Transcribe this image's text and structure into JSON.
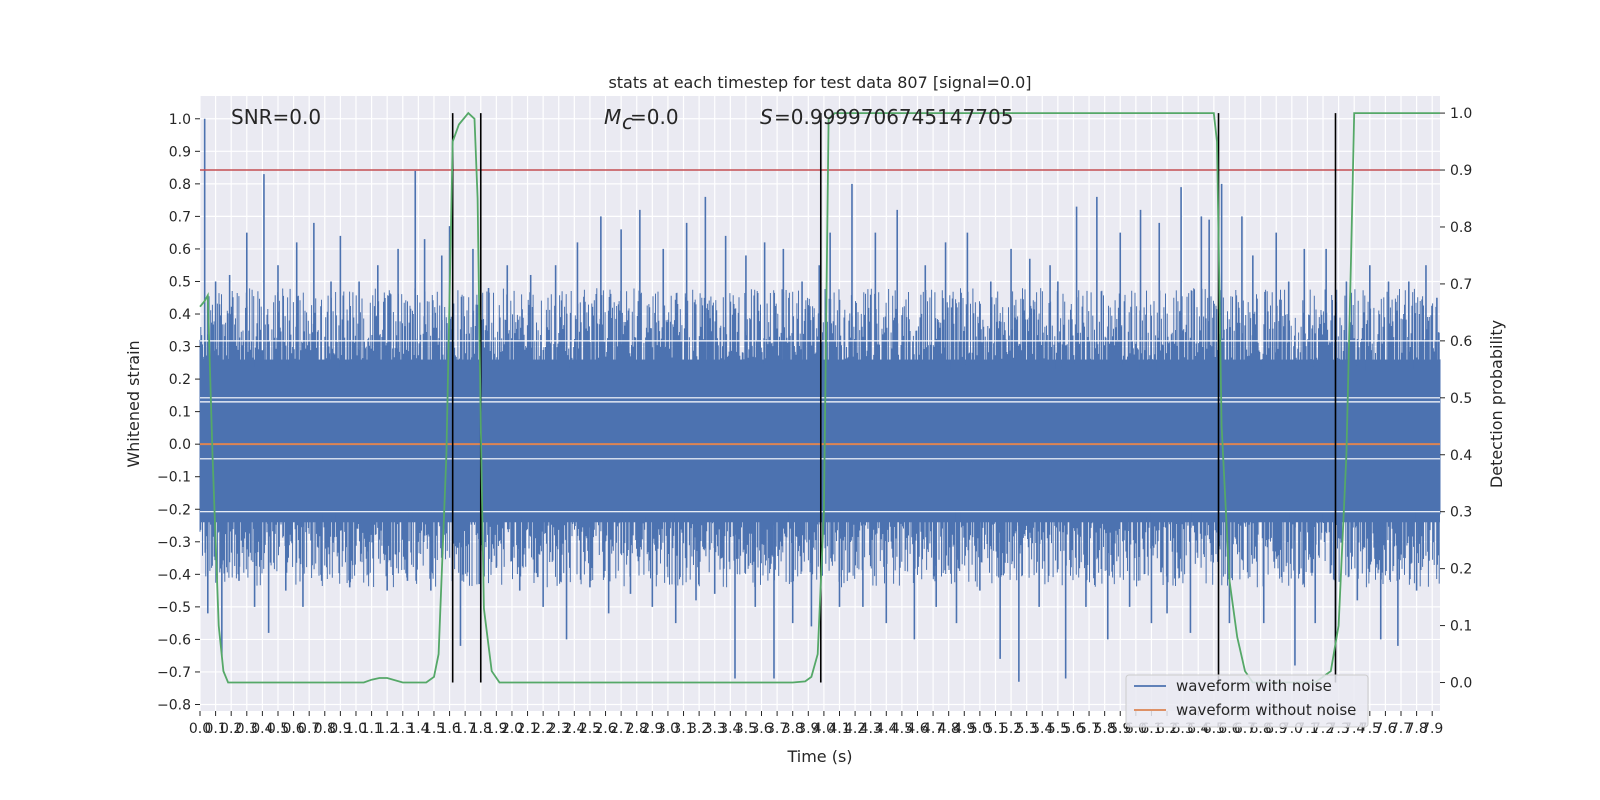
{
  "chart_data": {
    "type": "line",
    "title": "stats at each timestep for test data 807 [signal=0.0]",
    "xlabel": "Time (s)",
    "ylabel": "Whitened strain",
    "y2label": "Detection probability",
    "xlim": [
      0.0,
      7.95
    ],
    "ylim": [
      -0.82,
      1.07
    ],
    "y2lim": [
      -0.05,
      1.03
    ],
    "grid": true,
    "x_ticks": [
      0.0,
      0.1,
      0.2,
      0.3,
      0.4,
      0.5,
      0.6,
      0.7,
      0.8,
      0.9,
      1.0,
      1.1,
      1.2,
      1.3,
      1.4,
      1.5,
      1.6,
      1.7,
      1.8,
      1.9,
      2.0,
      2.1,
      2.2,
      2.3,
      2.4,
      2.5,
      2.6,
      2.7,
      2.8,
      2.9,
      3.0,
      3.1,
      3.2,
      3.3,
      3.4,
      3.5,
      3.6,
      3.7,
      3.8,
      3.9,
      4.0,
      4.1,
      4.2,
      4.3,
      4.4,
      4.5,
      4.6,
      4.7,
      4.8,
      4.9,
      5.0,
      5.1,
      5.2,
      5.3,
      5.4,
      5.5,
      5.6,
      5.7,
      5.8,
      5.9,
      6.0,
      6.1,
      6.2,
      6.3,
      6.4,
      6.5,
      6.6,
      6.7,
      6.8,
      6.9,
      7.0,
      7.1,
      7.2,
      7.3,
      7.4,
      7.5,
      7.6,
      7.7,
      7.8,
      7.9
    ],
    "x_tick_labels": [
      "0.0",
      "0.1",
      "0.2",
      "0.3",
      "0.4",
      "0.5",
      "0.6",
      "0.7",
      "0.8",
      "0.9",
      "1.0",
      "1.1",
      "1.2",
      "1.3",
      "1.4",
      "1.5",
      "1.6",
      "1.7",
      "1.8",
      "1.9",
      "2.0",
      "2.1",
      "2.2",
      "2.3",
      "2.4",
      "2.5",
      "2.6",
      "2.7",
      "2.8",
      "2.9",
      "3.0",
      "3.1",
      "3.2",
      "3.3",
      "3.4",
      "3.5",
      "3.6",
      "3.7",
      "3.8",
      "3.9",
      "4.0",
      "4.1",
      "4.2",
      "4.3",
      "4.4",
      "4.5",
      "4.6",
      "4.7",
      "4.8",
      "4.9",
      "5.0",
      "5.1",
      "5.2",
      "5.3",
      "5.4",
      "5.5",
      "5.6",
      "5.7",
      "5.8",
      "5.9",
      "6.0",
      "6.1",
      "6.2",
      "6.3",
      "6.4",
      "6.5",
      "6.6",
      "6.7",
      "6.8",
      "6.9",
      "7.0",
      "7.1",
      "7.2",
      "7.3",
      "7.4",
      "7.5",
      "7.6",
      "7.7",
      "7.8",
      "7.9"
    ],
    "y_ticks": [
      -0.8,
      -0.7,
      -0.6,
      -0.5,
      -0.4,
      -0.3,
      -0.2,
      -0.1,
      0.0,
      0.1,
      0.2,
      0.3,
      0.4,
      0.5,
      0.6,
      0.7,
      0.8,
      0.9,
      1.0
    ],
    "y_tick_labels": [
      "−0.8",
      "−0.7",
      "−0.6",
      "−0.5",
      "−0.4",
      "−0.3",
      "−0.2",
      "−0.1",
      "0.0",
      "0.1",
      "0.2",
      "0.3",
      "0.4",
      "0.5",
      "0.6",
      "0.7",
      "0.8",
      "0.9",
      "1.0"
    ],
    "y2_ticks": [
      0.0,
      0.1,
      0.2,
      0.3,
      0.4,
      0.5,
      0.6,
      0.7,
      0.8,
      0.9,
      1.0
    ],
    "y2_tick_labels": [
      "0.0",
      "0.1",
      "0.2",
      "0.3",
      "0.4",
      "0.5",
      "0.6",
      "0.7",
      "0.8",
      "0.9",
      "1.0"
    ],
    "series": [
      {
        "name": "waveform with noise",
        "color": "#4c72b0",
        "band_low": -0.24,
        "band_high": 0.26,
        "peaks": [
          {
            "x": 0.03,
            "y": 1.0
          },
          {
            "x": 0.05,
            "y": -0.52
          },
          {
            "x": 0.1,
            "y": 0.5
          },
          {
            "x": 0.14,
            "y": -0.65
          },
          {
            "x": 0.19,
            "y": 0.52
          },
          {
            "x": 0.25,
            "y": -0.42
          },
          {
            "x": 0.3,
            "y": 0.65
          },
          {
            "x": 0.35,
            "y": -0.5
          },
          {
            "x": 0.41,
            "y": 0.83
          },
          {
            "x": 0.44,
            "y": -0.58
          },
          {
            "x": 0.5,
            "y": 0.55
          },
          {
            "x": 0.55,
            "y": -0.45
          },
          {
            "x": 0.62,
            "y": 0.62
          },
          {
            "x": 0.66,
            "y": -0.5
          },
          {
            "x": 0.73,
            "y": 0.68
          },
          {
            "x": 0.78,
            "y": -0.42
          },
          {
            "x": 0.84,
            "y": 0.5
          },
          {
            "x": 0.9,
            "y": 0.64
          },
          {
            "x": 0.96,
            "y": -0.44
          },
          {
            "x": 1.02,
            "y": 0.5
          },
          {
            "x": 1.08,
            "y": -0.4
          },
          {
            "x": 1.14,
            "y": 0.55
          },
          {
            "x": 1.2,
            "y": -0.45
          },
          {
            "x": 1.27,
            "y": 0.6
          },
          {
            "x": 1.33,
            "y": -0.42
          },
          {
            "x": 1.38,
            "y": 0.84
          },
          {
            "x": 1.44,
            "y": 0.63
          },
          {
            "x": 1.48,
            "y": -0.45
          },
          {
            "x": 1.55,
            "y": 0.58
          },
          {
            "x": 1.6,
            "y": 0.67
          },
          {
            "x": 1.67,
            "y": -0.62
          },
          {
            "x": 1.75,
            "y": 0.6
          },
          {
            "x": 1.79,
            "y": -0.43
          },
          {
            "x": 1.85,
            "y": 0.48
          },
          {
            "x": 1.9,
            "y": -0.38
          },
          {
            "x": 1.97,
            "y": 0.55
          },
          {
            "x": 2.05,
            "y": -0.45
          },
          {
            "x": 2.12,
            "y": 0.52
          },
          {
            "x": 2.2,
            "y": -0.5
          },
          {
            "x": 2.28,
            "y": 0.55
          },
          {
            "x": 2.35,
            "y": -0.6
          },
          {
            "x": 2.42,
            "y": 0.62
          },
          {
            "x": 2.5,
            "y": -0.44
          },
          {
            "x": 2.57,
            "y": 0.7
          },
          {
            "x": 2.62,
            "y": -0.52
          },
          {
            "x": 2.7,
            "y": 0.66
          },
          {
            "x": 2.76,
            "y": -0.46
          },
          {
            "x": 2.82,
            "y": 0.72
          },
          {
            "x": 2.9,
            "y": -0.5
          },
          {
            "x": 2.97,
            "y": 0.6
          },
          {
            "x": 3.05,
            "y": -0.55
          },
          {
            "x": 3.12,
            "y": 0.68
          },
          {
            "x": 3.18,
            "y": -0.48
          },
          {
            "x": 3.24,
            "y": 0.76
          },
          {
            "x": 3.3,
            "y": -0.46
          },
          {
            "x": 3.37,
            "y": 0.64
          },
          {
            "x": 3.43,
            "y": -0.72
          },
          {
            "x": 3.5,
            "y": 0.58
          },
          {
            "x": 3.56,
            "y": -0.5
          },
          {
            "x": 3.62,
            "y": 0.62
          },
          {
            "x": 3.68,
            "y": -0.72
          },
          {
            "x": 3.74,
            "y": 0.6
          },
          {
            "x": 3.8,
            "y": -0.55
          },
          {
            "x": 3.86,
            "y": 0.5
          },
          {
            "x": 3.92,
            "y": -0.56
          },
          {
            "x": 3.97,
            "y": 0.55
          },
          {
            "x": 4.04,
            "y": 0.65
          },
          {
            "x": 4.1,
            "y": -0.5
          },
          {
            "x": 4.18,
            "y": 0.8
          },
          {
            "x": 4.25,
            "y": -0.5
          },
          {
            "x": 4.33,
            "y": 0.65
          },
          {
            "x": 4.4,
            "y": -0.55
          },
          {
            "x": 4.47,
            "y": 0.72
          },
          {
            "x": 4.52,
            "y": 0.05
          },
          {
            "x": 4.58,
            "y": -0.6
          },
          {
            "x": 4.65,
            "y": 0.55
          },
          {
            "x": 4.72,
            "y": -0.5
          },
          {
            "x": 4.78,
            "y": 0.62
          },
          {
            "x": 4.85,
            "y": -0.55
          },
          {
            "x": 4.92,
            "y": 0.65
          },
          {
            "x": 5.0,
            "y": -0.45
          },
          {
            "x": 5.07,
            "y": 0.5
          },
          {
            "x": 5.13,
            "y": -0.66
          },
          {
            "x": 5.2,
            "y": 0.6
          },
          {
            "x": 5.25,
            "y": -0.73
          },
          {
            "x": 5.32,
            "y": 0.57
          },
          {
            "x": 5.38,
            "y": -0.5
          },
          {
            "x": 5.45,
            "y": 0.55
          },
          {
            "x": 5.5,
            "y": 0.5
          },
          {
            "x": 5.55,
            "y": -0.72
          },
          {
            "x": 5.62,
            "y": 0.73
          },
          {
            "x": 5.68,
            "y": -0.5
          },
          {
            "x": 5.75,
            "y": 0.76
          },
          {
            "x": 5.82,
            "y": -0.6
          },
          {
            "x": 5.9,
            "y": 0.65
          },
          {
            "x": 5.96,
            "y": -0.5
          },
          {
            "x": 6.03,
            "y": 0.72
          },
          {
            "x": 6.1,
            "y": -0.55
          },
          {
            "x": 6.15,
            "y": 0.68
          },
          {
            "x": 6.2,
            "y": -0.52
          },
          {
            "x": 6.29,
            "y": 0.79
          },
          {
            "x": 6.35,
            "y": -0.58
          },
          {
            "x": 6.42,
            "y": 0.7
          },
          {
            "x": 6.47,
            "y": 0.69
          },
          {
            "x": 6.55,
            "y": 0.8
          },
          {
            "x": 6.6,
            "y": -0.55
          },
          {
            "x": 6.68,
            "y": 0.7
          },
          {
            "x": 6.75,
            "y": 0.58
          },
          {
            "x": 6.82,
            "y": -0.55
          },
          {
            "x": 6.9,
            "y": 0.65
          },
          {
            "x": 6.98,
            "y": 0.5
          },
          {
            "x": 7.02,
            "y": -0.68
          },
          {
            "x": 7.08,
            "y": 0.6
          },
          {
            "x": 7.15,
            "y": -0.55
          },
          {
            "x": 7.22,
            "y": 0.6
          },
          {
            "x": 7.28,
            "y": -0.6
          },
          {
            "x": 7.35,
            "y": 0.5
          },
          {
            "x": 7.42,
            "y": -0.48
          },
          {
            "x": 7.5,
            "y": 0.55
          },
          {
            "x": 7.57,
            "y": -0.6
          },
          {
            "x": 7.62,
            "y": 0.5
          },
          {
            "x": 7.68,
            "y": -0.62
          },
          {
            "x": 7.75,
            "y": 0.5
          },
          {
            "x": 7.8,
            "y": -0.45
          },
          {
            "x": 7.86,
            "y": 0.55
          },
          {
            "x": 7.93,
            "y": 0.45
          }
        ]
      },
      {
        "name": "waveform without noise",
        "color": "#dd8452",
        "x": [
          0.0,
          7.95
        ],
        "y": [
          0.0,
          0.0
        ]
      },
      {
        "color": "#55a868",
        "axis": "right",
        "x": [
          0.0,
          0.03,
          0.05,
          0.08,
          0.12,
          0.15,
          0.18,
          0.25,
          0.5,
          1.0,
          1.05,
          1.1,
          1.15,
          1.2,
          1.3,
          1.4,
          1.45,
          1.5,
          1.53,
          1.58,
          1.62,
          1.66,
          1.72,
          1.76,
          1.78,
          1.8,
          1.82,
          1.87,
          1.92,
          2.0,
          2.5,
          3.0,
          3.5,
          3.8,
          3.88,
          3.92,
          3.96,
          4.0,
          4.03,
          4.07,
          4.12,
          4.2,
          5.0,
          6.0,
          6.5,
          6.52,
          6.55,
          6.6,
          6.65,
          6.7,
          6.75,
          6.8,
          7.0,
          7.15,
          7.25,
          7.3,
          7.35,
          7.38,
          7.4,
          7.45,
          7.6,
          7.95
        ],
        "y": [
          0.66,
          0.67,
          0.68,
          0.4,
          0.1,
          0.02,
          0.0,
          0.0,
          0.0,
          0.0,
          0.0,
          0.005,
          0.008,
          0.008,
          0.0,
          0.0,
          0.0,
          0.01,
          0.05,
          0.4,
          0.95,
          0.98,
          1.0,
          0.99,
          0.85,
          0.45,
          0.13,
          0.02,
          0.0,
          0.0,
          0.0,
          0.0,
          0.0,
          0.0,
          0.002,
          0.01,
          0.05,
          0.3,
          0.99,
          1.0,
          1.0,
          1.0,
          1.0,
          1.0,
          1.0,
          0.95,
          0.45,
          0.18,
          0.08,
          0.02,
          0.0,
          0.0,
          0.0,
          0.0,
          0.02,
          0.1,
          0.4,
          0.75,
          1.0,
          1.0,
          1.0,
          1.0
        ]
      }
    ],
    "threshold": {
      "color": "#c44e52",
      "y2": 0.9
    },
    "vlines": [
      1.62,
      1.8,
      3.98,
      6.53,
      7.28
    ],
    "vline_y2_range": [
      0.0,
      1.0
    ],
    "annotations": [
      "SNR=0.0",
      "=0.0",
      "=0.9999706745147705"
    ],
    "annotation_symbols": [
      "M",
      "c",
      "S"
    ],
    "legend": {
      "placement": "lower-right"
    }
  }
}
